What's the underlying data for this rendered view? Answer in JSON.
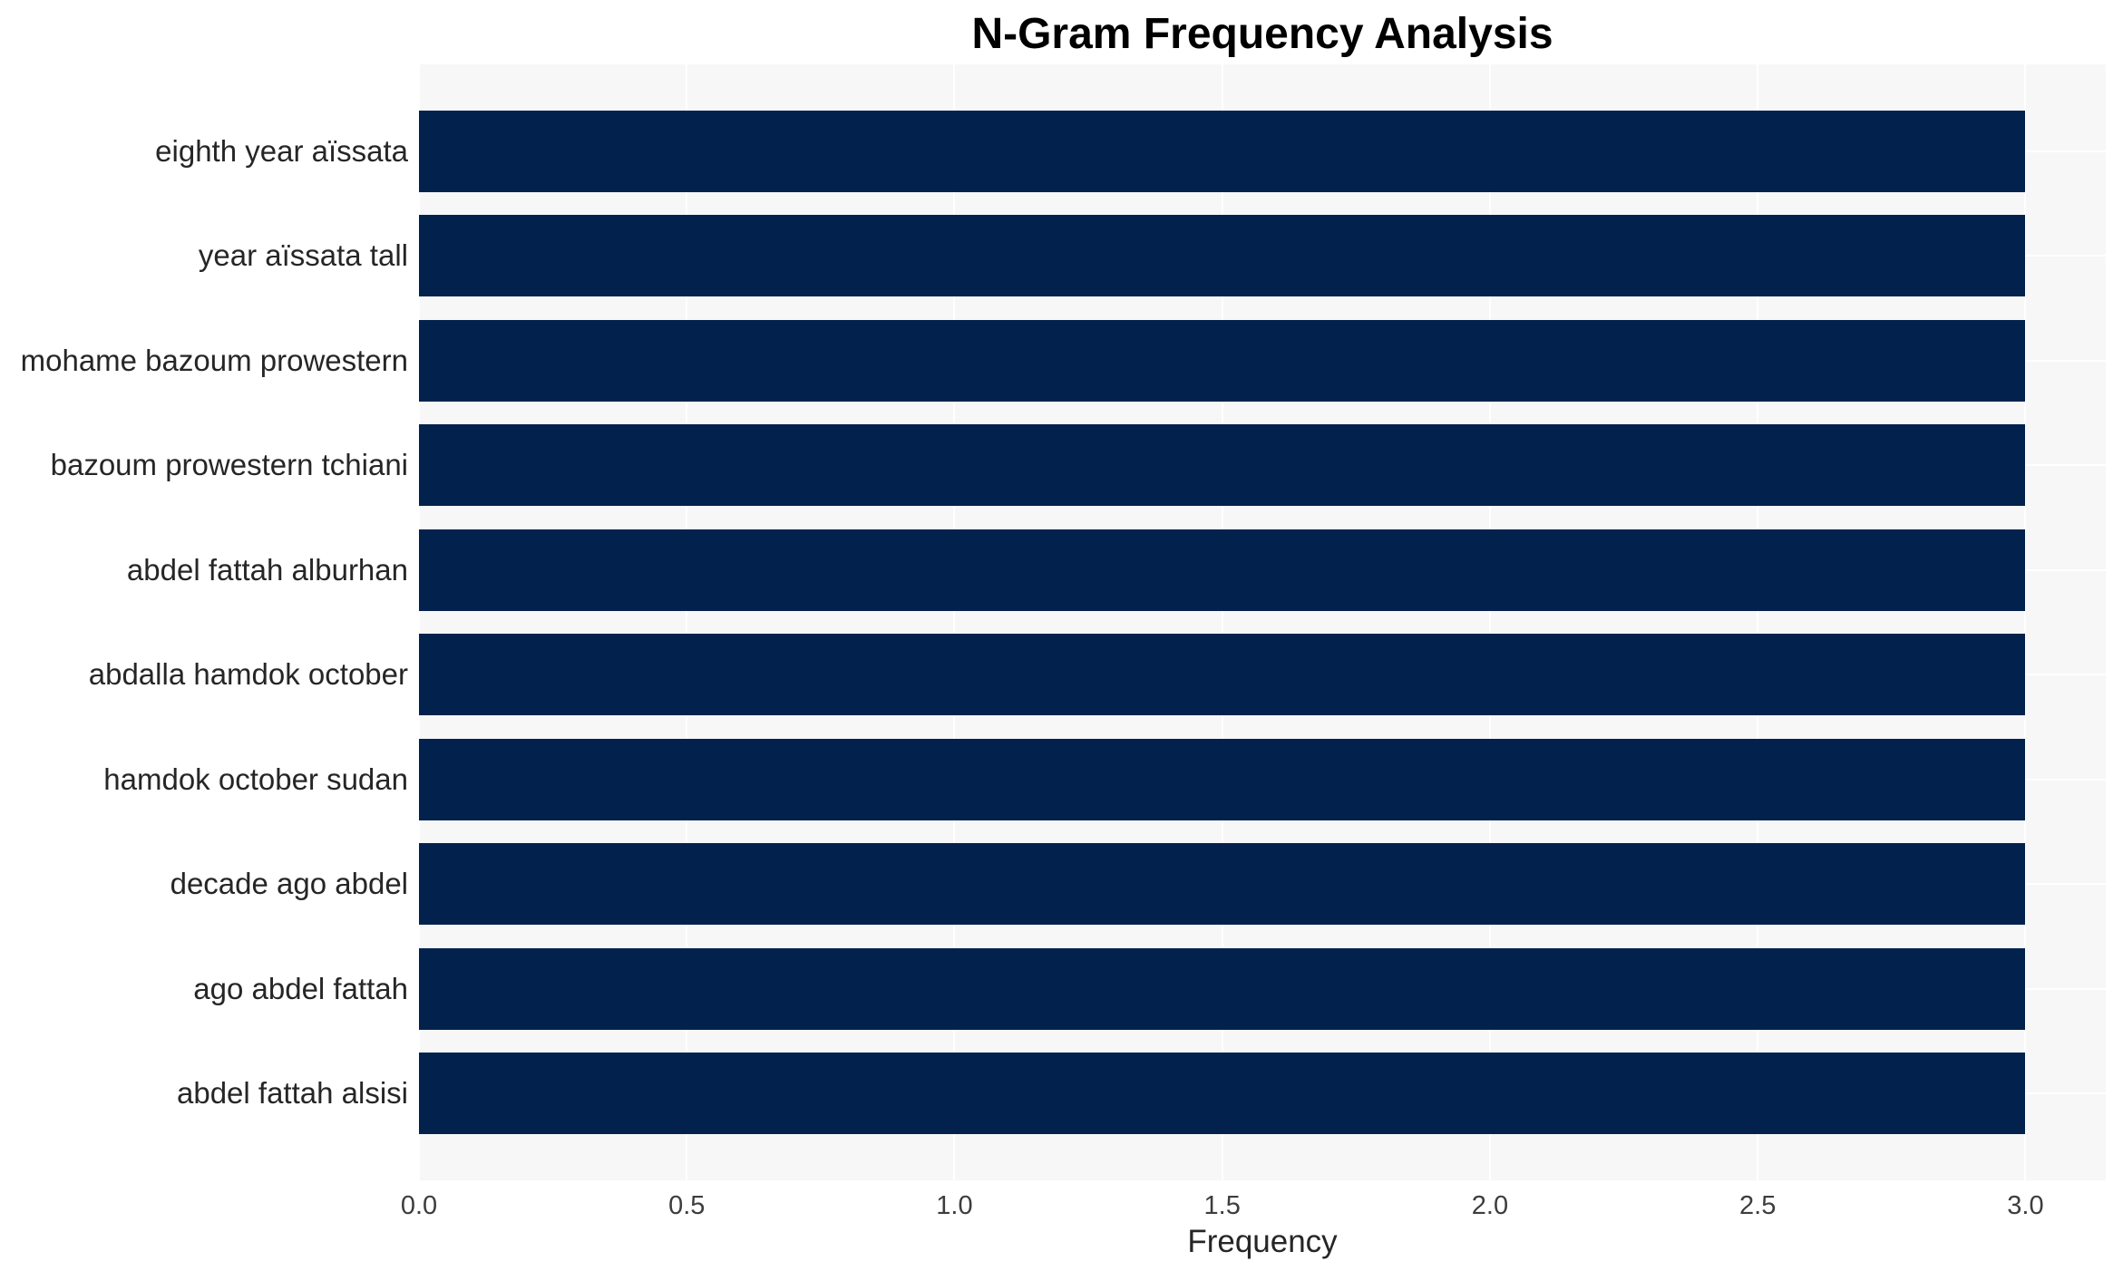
{
  "title": "N-Gram Frequency Analysis",
  "chart_data": {
    "type": "bar",
    "orientation": "horizontal",
    "title": "N-Gram Frequency Analysis",
    "categories": [
      "eighth year aïssata",
      "year aïssata tall",
      "mohame bazoum prowestern",
      "bazoum prowestern tchiani",
      "abdel fattah alburhan",
      "abdalla hamdok october",
      "hamdok october sudan",
      "decade ago abdel",
      "ago abdel fattah",
      "abdel fattah alsisi"
    ],
    "values": [
      3,
      3,
      3,
      3,
      3,
      3,
      3,
      3,
      3,
      3
    ],
    "xlabel": "Frequency",
    "ylabel": "",
    "xlim": [
      0,
      3.15
    ],
    "xticks": [
      0.0,
      0.5,
      1.0,
      1.5,
      2.0,
      2.5,
      3.0
    ],
    "xtick_labels": [
      "0.0",
      "0.5",
      "1.0",
      "1.5",
      "2.0",
      "2.5",
      "3.0"
    ],
    "grid": true,
    "legend": false,
    "colors": {
      "bar": "#02224d",
      "plot_background": "#f7f7f8",
      "gridline": "#ffffff",
      "tick_text": "#3d3d3d",
      "label_text": "#262626",
      "title_text": "#000000"
    }
  }
}
